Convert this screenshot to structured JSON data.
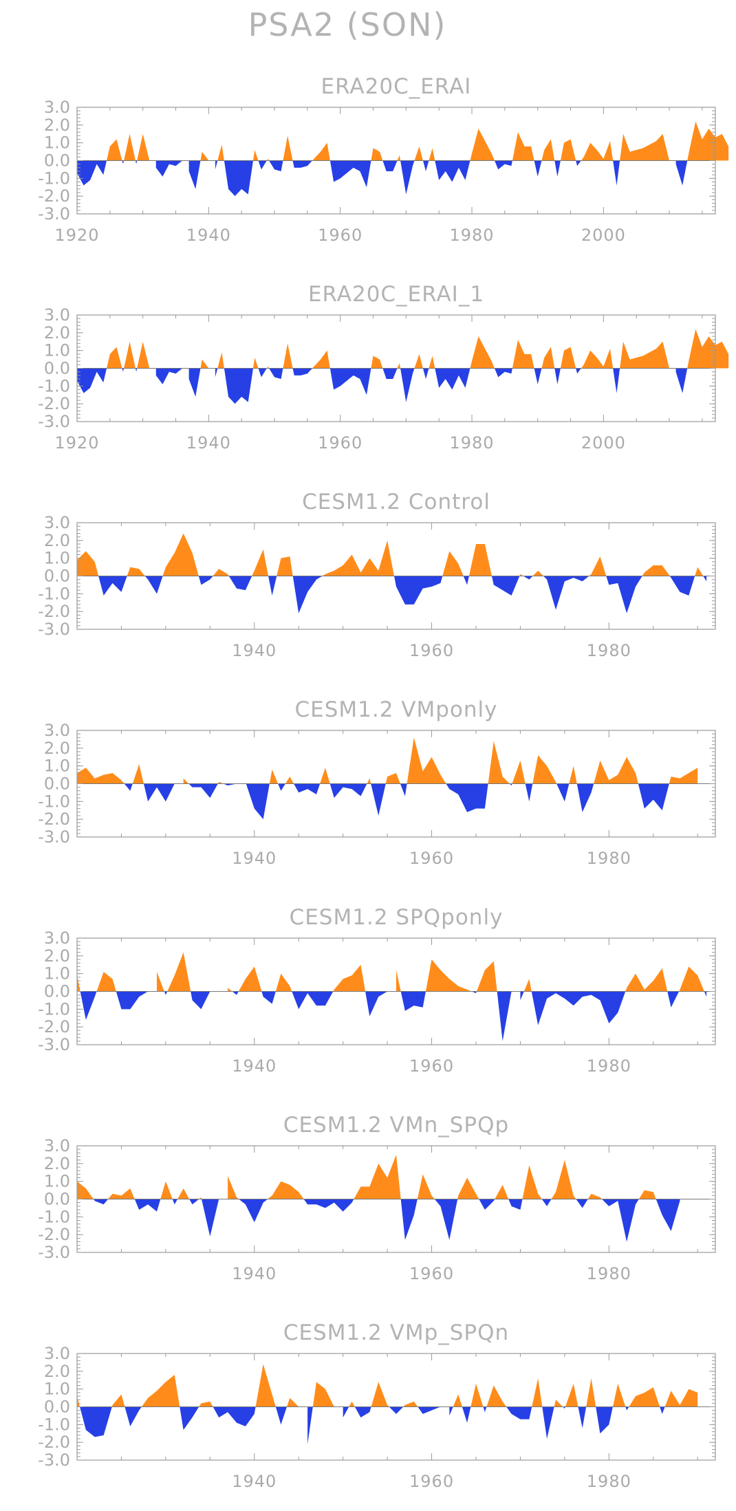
{
  "title": "PSA2 (SON)",
  "colors": {
    "positive": "#ff8c1a",
    "negative": "#2640e6",
    "text": "#b3b3b3",
    "frame": "#999999"
  },
  "chart_data": [
    {
      "type": "area",
      "title": "ERA20C_ERAI",
      "xlim": [
        1920,
        2017
      ],
      "ylim": [
        -3,
        3
      ],
      "yticks": [
        "3.0",
        "2.0",
        "1.0",
        "0.0",
        "-1.0",
        "-2.0",
        "-3.0"
      ],
      "xticks": [
        "1920",
        "1940",
        "1960",
        "1980",
        "2000"
      ],
      "x_start": 1920,
      "values": [
        -0.7,
        -1.4,
        -1.1,
        -0.2,
        -0.8,
        0.8,
        1.2,
        -0.2,
        1.5,
        -0.2,
        1.5,
        0.0,
        -0.4,
        -0.9,
        -0.2,
        -0.3,
        0.0,
        -0.6,
        -1.6,
        0.5,
        0.0,
        -0.5,
        0.9,
        -1.6,
        -2.0,
        -1.6,
        -1.9,
        0.6,
        -0.5,
        0.1,
        -0.5,
        -0.6,
        1.4,
        -0.4,
        -0.4,
        -0.3,
        0.1,
        0.5,
        1.0,
        -1.2,
        -1.0,
        -0.7,
        -0.4,
        -0.6,
        -1.5,
        0.7,
        0.5,
        -0.6,
        -0.6,
        0.3,
        -1.9,
        -0.3,
        0.8,
        -0.6,
        0.7,
        -1.1,
        -0.6,
        -1.2,
        -0.4,
        -1.1,
        0.4,
        1.8,
        1.1,
        0.4,
        -0.5,
        -0.2,
        -0.3,
        1.6,
        0.8,
        0.8,
        -0.9,
        0.6,
        1.2,
        -0.9,
        1.0,
        1.2,
        -0.3,
        0.2,
        1.0,
        0.6,
        0.1,
        1.1,
        -1.4,
        1.5,
        0.5,
        0.6,
        0.7,
        0.9,
        1.1,
        1.5,
        0.0,
        -0.2,
        -1.4,
        0.5,
        2.2,
        1.2,
        1.8,
        1.3,
        1.5,
        0.8
      ]
    },
    {
      "type": "area",
      "title": "ERA20C_ERAI_1",
      "xlim": [
        1920,
        2017
      ],
      "ylim": [
        -3,
        3
      ],
      "yticks": [
        "3.0",
        "2.0",
        "1.0",
        "0.0",
        "-1.0",
        "-2.0",
        "-3.0"
      ],
      "xticks": [
        "1920",
        "1940",
        "1960",
        "1980",
        "2000"
      ],
      "x_start": 1920,
      "values": [
        -0.7,
        -1.4,
        -1.1,
        -0.2,
        -0.8,
        0.8,
        1.2,
        -0.2,
        1.5,
        -0.2,
        1.5,
        0.0,
        -0.4,
        -0.9,
        -0.2,
        -0.3,
        0.0,
        -0.6,
        -1.6,
        0.5,
        0.0,
        -0.5,
        0.9,
        -1.6,
        -2.0,
        -1.6,
        -1.9,
        0.6,
        -0.5,
        0.1,
        -0.5,
        -0.6,
        1.4,
        -0.4,
        -0.4,
        -0.3,
        0.1,
        0.5,
        1.0,
        -1.2,
        -1.0,
        -0.7,
        -0.4,
        -0.6,
        -1.5,
        0.7,
        0.5,
        -0.6,
        -0.6,
        0.3,
        -1.9,
        -0.3,
        0.8,
        -0.6,
        0.7,
        -1.1,
        -0.6,
        -1.2,
        -0.4,
        -1.1,
        0.4,
        1.8,
        1.1,
        0.4,
        -0.5,
        -0.2,
        -0.3,
        1.6,
        0.8,
        0.8,
        -0.9,
        0.6,
        1.2,
        -0.9,
        1.0,
        1.2,
        -0.3,
        0.2,
        1.0,
        0.6,
        0.1,
        1.1,
        -1.4,
        1.5,
        0.5,
        0.6,
        0.7,
        0.9,
        1.1,
        1.5,
        0.0,
        -0.2,
        -1.4,
        0.5,
        2.2,
        1.2,
        1.8,
        1.3,
        1.5,
        0.8
      ]
    },
    {
      "type": "area",
      "title": "CESM1.2 Control",
      "xlim": [
        1920,
        1992
      ],
      "ylim": [
        -3,
        3
      ],
      "yticks": [
        "3.0",
        "2.0",
        "1.0",
        "0.0",
        "-1.0",
        "-2.0",
        "-3.0"
      ],
      "xticks": [
        "1940",
        "1960",
        "1980"
      ],
      "x_start": 1920,
      "values": [
        0.9,
        1.4,
        0.8,
        -1.1,
        -0.4,
        -0.9,
        0.5,
        0.4,
        -0.2,
        -1.0,
        0.5,
        1.3,
        2.4,
        1.3,
        -0.5,
        -0.2,
        0.4,
        0.1,
        -0.7,
        -0.8,
        0.3,
        1.5,
        -1.1,
        1.0,
        1.1,
        -2.1,
        -0.9,
        -0.2,
        0.1,
        0.3,
        0.6,
        1.2,
        0.2,
        1.0,
        0.3,
        2.0,
        -0.6,
        -1.6,
        -1.6,
        -0.7,
        -0.6,
        -0.4,
        1.4,
        0.7,
        -0.5,
        1.8,
        1.8,
        -0.5,
        -0.8,
        -1.1,
        0.1,
        -0.2,
        0.3,
        -0.2,
        -1.9,
        -0.3,
        -0.1,
        -0.3,
        0.1,
        1.1,
        -0.5,
        -0.4,
        -2.1,
        -0.6,
        0.2,
        0.6,
        0.6,
        -0.1,
        -0.9,
        -1.1,
        0.5,
        -0.3
      ]
    },
    {
      "type": "area",
      "title": "CESM1.2 VMponly",
      "xlim": [
        1920,
        1992
      ],
      "ylim": [
        -3,
        3
      ],
      "yticks": [
        "3.0",
        "2.0",
        "1.0",
        "0.0",
        "-1.0",
        "-2.0",
        "-3.0"
      ],
      "xticks": [
        "1940",
        "1960",
        "1980"
      ],
      "x_start": 1920,
      "values": [
        0.6,
        0.9,
        0.3,
        0.5,
        0.6,
        0.2,
        -0.4,
        1.1,
        -1.0,
        -0.2,
        -1.0,
        0.0,
        0.3,
        -0.2,
        -0.2,
        -0.8,
        0.1,
        -0.1,
        0.0,
        0.1,
        -1.4,
        -2.0,
        0.8,
        -0.4,
        0.4,
        -0.5,
        -0.3,
        -0.6,
        0.9,
        -0.8,
        -0.2,
        -0.3,
        -0.7,
        0.3,
        -1.8,
        0.4,
        0.6,
        -0.7,
        2.6,
        0.7,
        1.5,
        0.5,
        -0.3,
        -0.6,
        -1.6,
        -1.4,
        -1.4,
        2.4,
        0.4,
        -0.1,
        1.3,
        -1.0,
        1.6,
        1.0,
        0.1,
        -1.0,
        1.0,
        -1.6,
        -0.5,
        1.3,
        0.2,
        0.5,
        1.5,
        0.6,
        -1.4,
        -0.9,
        -1.5,
        0.4,
        0.3,
        0.6,
        0.9
      ]
    },
    {
      "type": "area",
      "title": "CESM1.2 SPQponly",
      "xlim": [
        1920,
        1992
      ],
      "ylim": [
        -3,
        3
      ],
      "yticks": [
        "3.0",
        "2.0",
        "1.0",
        "0.0",
        "-1.0",
        "-2.0",
        "-3.0"
      ],
      "xticks": [
        "1940",
        "1960",
        "1980"
      ],
      "x_start": 1920,
      "values": [
        0.9,
        -1.6,
        -0.3,
        1.1,
        0.7,
        -1.0,
        -1.0,
        -0.3,
        0.0,
        1.1,
        -0.2,
        0.9,
        2.2,
        -0.5,
        -1.0,
        0.0,
        0.0,
        0.2,
        -0.2,
        0.7,
        1.4,
        -0.3,
        -0.7,
        1.0,
        0.3,
        -1.0,
        -0.1,
        -0.8,
        -0.8,
        0.1,
        0.7,
        0.9,
        1.5,
        -1.4,
        -0.3,
        0.0,
        1.2,
        -1.1,
        -0.8,
        -0.9,
        1.8,
        1.2,
        0.7,
        0.3,
        0.1,
        -0.1,
        1.2,
        1.7,
        -2.8,
        0.0,
        -0.5,
        0.7,
        -1.9,
        -0.4,
        -0.1,
        -0.4,
        -0.8,
        -0.3,
        -0.2,
        -0.5,
        -1.8,
        -1.2,
        0.2,
        1.0,
        0.1,
        0.6,
        1.3,
        -0.9,
        0.1,
        1.4,
        0.9,
        -0.3
      ]
    },
    {
      "type": "area",
      "title": "CESM1.2 VMn_SPQp",
      "xlim": [
        1920,
        1992
      ],
      "ylim": [
        -3,
        3
      ],
      "yticks": [
        "3.0",
        "2.0",
        "1.0",
        "0.0",
        "-1.0",
        "-2.0",
        "-3.0"
      ],
      "xticks": [
        "1940",
        "1960",
        "1980"
      ],
      "x_start": 1920,
      "values": [
        1.0,
        0.6,
        -0.1,
        -0.3,
        0.3,
        0.2,
        0.6,
        -0.6,
        -0.3,
        -0.7,
        1.0,
        -0.3,
        0.6,
        -0.3,
        0.1,
        -2.1,
        0.0,
        1.3,
        0.1,
        -0.3,
        -1.3,
        -0.2,
        0.2,
        1.0,
        0.8,
        0.4,
        -0.3,
        -0.3,
        -0.5,
        -0.2,
        -0.7,
        -0.2,
        0.7,
        0.7,
        2.0,
        1.2,
        2.5,
        -2.3,
        -0.9,
        1.4,
        0.2,
        -0.4,
        -2.3,
        0.2,
        1.2,
        0.3,
        -0.6,
        -0.1,
        0.8,
        -0.4,
        -0.6,
        1.9,
        0.3,
        -0.4,
        0.4,
        2.2,
        0.2,
        -0.5,
        0.3,
        0.1,
        -0.4,
        -0.1,
        -2.4,
        -0.3,
        0.5,
        0.4,
        -0.9,
        -1.8,
        -0.1
      ]
    },
    {
      "type": "area",
      "title": "CESM1.2 VMp_SPQn",
      "xlim": [
        1920,
        1992
      ],
      "ylim": [
        -3,
        3
      ],
      "yticks": [
        "3.0",
        "2.0",
        "1.0",
        "0.0",
        "-1.0",
        "-2.0",
        "-3.0"
      ],
      "xticks": [
        "1940",
        "1960",
        "1980"
      ],
      "x_start": 1920,
      "values": [
        0.6,
        -1.3,
        -1.7,
        -1.6,
        0.1,
        0.7,
        -1.1,
        -0.2,
        0.5,
        0.9,
        1.4,
        1.8,
        -1.3,
        -0.6,
        0.2,
        0.3,
        -0.6,
        -0.3,
        -0.9,
        -1.1,
        -0.4,
        2.4,
        0.7,
        -1.0,
        0.5,
        0.0,
        -2.1,
        1.4,
        1.0,
        0.0,
        -0.6,
        0.3,
        -0.6,
        -0.3,
        1.4,
        0.1,
        -0.4,
        0.1,
        0.3,
        -0.4,
        -0.2,
        0.0,
        -0.5,
        0.7,
        -0.9,
        1.3,
        -0.3,
        1.2,
        0.3,
        -0.4,
        -0.7,
        -0.7,
        1.6,
        -1.8,
        0.4,
        -0.1,
        1.3,
        -1.2,
        1.6,
        -1.5,
        -1.0,
        1.3,
        -0.2,
        0.6,
        0.8,
        1.1,
        -0.4,
        0.9,
        0.1,
        1.0,
        0.8
      ]
    }
  ]
}
